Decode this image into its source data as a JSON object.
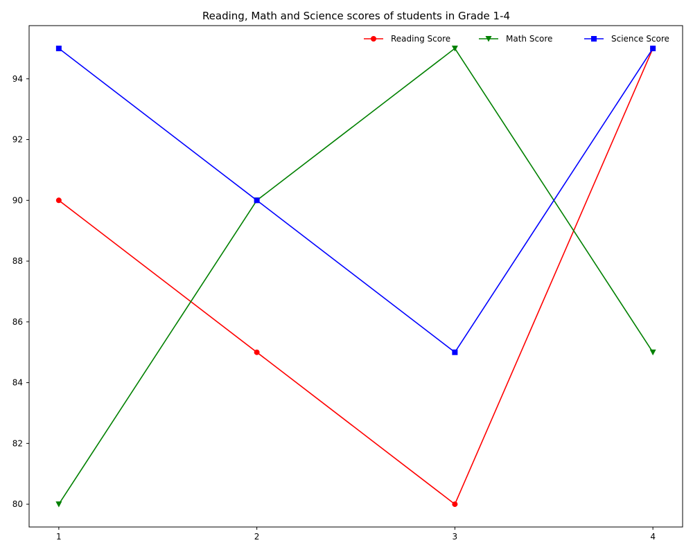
{
  "chart_data": {
    "type": "line",
    "title": "Reading, Math and Science scores of students in Grade 1-4",
    "xlabel": "",
    "ylabel": "",
    "x": [
      1,
      2,
      3,
      4
    ],
    "xticks": [
      "1",
      "2",
      "3",
      "4"
    ],
    "yticks": [
      "80",
      "82",
      "84",
      "86",
      "88",
      "90",
      "92",
      "94"
    ],
    "xlim": [
      0.85,
      4.15
    ],
    "ylim": [
      79.25,
      95.75
    ],
    "grid": false,
    "legend_position": "top-right",
    "series": [
      {
        "name": "Reading Score",
        "values": [
          90,
          85,
          80,
          95
        ],
        "color": "#ff0000",
        "marker": "circle"
      },
      {
        "name": "Math Score",
        "values": [
          80,
          90,
          95,
          85
        ],
        "color": "#008000",
        "marker": "triangle-down"
      },
      {
        "name": "Science Score",
        "values": [
          95,
          90,
          85,
          95
        ],
        "color": "#0000ff",
        "marker": "square"
      }
    ]
  }
}
